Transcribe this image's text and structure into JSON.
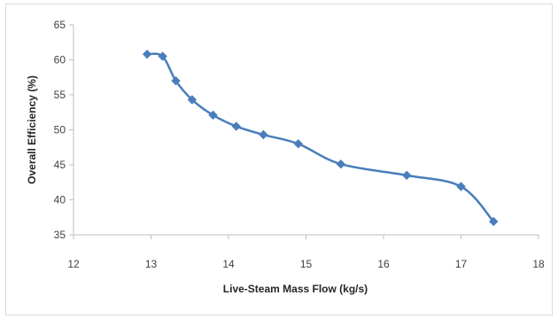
{
  "chart_data": {
    "type": "line",
    "title": "",
    "xlabel": "Live-Steam Mass Flow (kg/s)",
    "ylabel": "Overall Efficiency (%)",
    "xlim": [
      12,
      18
    ],
    "ylim": [
      35,
      65
    ],
    "xticks": [
      12,
      13,
      14,
      15,
      16,
      17,
      18
    ],
    "yticks": [
      35,
      40,
      45,
      50,
      55,
      60,
      65
    ],
    "grid": false,
    "legend": "none",
    "series": [
      {
        "color": "#4a7ebb",
        "marker": "diamond",
        "x": [
          12.95,
          13.15,
          13.32,
          13.53,
          13.8,
          14.1,
          14.45,
          14.9,
          15.45,
          16.3,
          17.0,
          17.42
        ],
        "y": [
          60.8,
          60.5,
          57.0,
          54.3,
          52.1,
          50.5,
          49.3,
          48.0,
          45.1,
          43.5,
          41.9,
          36.9
        ]
      }
    ]
  }
}
